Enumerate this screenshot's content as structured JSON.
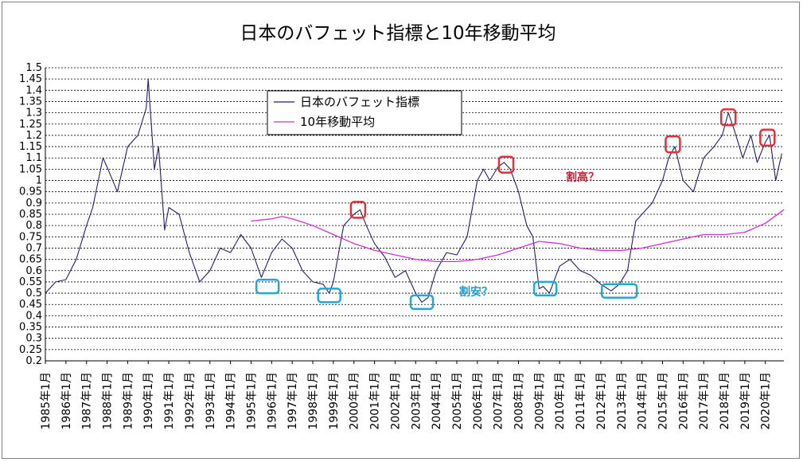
{
  "chart_data": {
    "type": "line",
    "title": "日本のバフェット指標と10年移動平均",
    "xlabel": "",
    "ylabel": "",
    "ylim": [
      0.2,
      1.5
    ],
    "y_ticks": [
      "1.5",
      "1.45",
      "1.4",
      "1.35",
      "1.3",
      "1.25",
      "1.2",
      "1.15",
      "1.1",
      "1.05",
      "1",
      "0.95",
      "0.9",
      "0.85",
      "0.8",
      "0.75",
      "0.7",
      "0.65",
      "0.6",
      "0.55",
      "0.5",
      "0.45",
      "0.4",
      "0.35",
      "0.3",
      "0.25",
      "0.2"
    ],
    "x_ticks": [
      "1985年1月",
      "1986年1月",
      "1987年1月",
      "1988年1月",
      "1989年1月",
      "1990年1月",
      "1991年1月",
      "1992年1月",
      "1993年1月",
      "1994年1月",
      "1995年1月",
      "1996年1月",
      "1997年1月",
      "1998年1月",
      "1999年1月",
      "2000年1月",
      "2001年1月",
      "2002年1月",
      "2003年1月",
      "2004年1月",
      "2005年1月",
      "2006年1月",
      "2007年1月",
      "2008年1月",
      "2009年1月",
      "2010年1月",
      "2011年1月",
      "2012年1月",
      "2013年1月",
      "2014年1月",
      "2015年1月",
      "2016年1月",
      "2017年1月",
      "2018年1月",
      "2019年1月",
      "2020年1月"
    ],
    "grid": true,
    "legend_position": "top-center",
    "series": [
      {
        "name": "日本のバフェット指標",
        "color": "#1f1f6e",
        "x": [
          1985.0,
          1985.5,
          1986.0,
          1986.5,
          1987.0,
          1987.3,
          1987.8,
          1988.0,
          1988.5,
          1989.0,
          1989.5,
          1989.9,
          1990.0,
          1990.3,
          1990.5,
          1990.8,
          1991.0,
          1991.5,
          1992.0,
          1992.5,
          1993.0,
          1993.5,
          1994.0,
          1994.5,
          1995.0,
          1995.5,
          1996.0,
          1996.5,
          1997.0,
          1997.5,
          1998.0,
          1998.5,
          1998.8,
          1999.0,
          1999.5,
          2000.0,
          2000.3,
          2000.6,
          2001.0,
          2001.5,
          2002.0,
          2002.5,
          2003.0,
          2003.3,
          2003.6,
          2004.0,
          2004.5,
          2005.0,
          2005.5,
          2006.0,
          2006.3,
          2006.6,
          2007.0,
          2007.3,
          2007.6,
          2008.0,
          2008.4,
          2008.7,
          2009.0,
          2009.2,
          2009.5,
          2010.0,
          2010.5,
          2011.0,
          2011.5,
          2012.0,
          2012.5,
          2012.9,
          2013.3,
          2013.7,
          2014.0,
          2014.5,
          2015.0,
          2015.3,
          2015.6,
          2016.0,
          2016.5,
          2017.0,
          2017.5,
          2017.9,
          2018.2,
          2018.5,
          2018.9,
          2019.3,
          2019.6,
          2020.0,
          2020.2,
          2020.5,
          2020.8
        ],
        "values": [
          0.5,
          0.55,
          0.56,
          0.65,
          0.8,
          0.88,
          1.1,
          1.06,
          0.95,
          1.15,
          1.2,
          1.32,
          1.45,
          1.05,
          1.15,
          0.78,
          0.88,
          0.85,
          0.68,
          0.55,
          0.6,
          0.7,
          0.68,
          0.76,
          0.7,
          0.57,
          0.68,
          0.74,
          0.7,
          0.6,
          0.55,
          0.54,
          0.5,
          0.55,
          0.8,
          0.85,
          0.87,
          0.8,
          0.72,
          0.66,
          0.57,
          0.6,
          0.5,
          0.46,
          0.48,
          0.6,
          0.68,
          0.67,
          0.75,
          1.0,
          1.05,
          1.0,
          1.06,
          1.08,
          1.05,
          0.95,
          0.8,
          0.75,
          0.52,
          0.53,
          0.5,
          0.62,
          0.65,
          0.6,
          0.58,
          0.54,
          0.51,
          0.54,
          0.6,
          0.82,
          0.85,
          0.9,
          1.0,
          1.1,
          1.15,
          1.0,
          0.95,
          1.1,
          1.15,
          1.2,
          1.3,
          1.22,
          1.1,
          1.2,
          1.08,
          1.17,
          1.2,
          1.0,
          1.12
        ]
      },
      {
        "name": "10年移動平均",
        "color": "#cc33cc",
        "x": [
          1995.0,
          1996.0,
          1996.5,
          1997.0,
          1998.0,
          1999.0,
          2000.0,
          2001.0,
          2002.0,
          2003.0,
          2004.0,
          2005.0,
          2006.0,
          2007.0,
          2008.0,
          2009.0,
          2010.0,
          2011.0,
          2012.0,
          2013.0,
          2014.0,
          2015.0,
          2016.0,
          2017.0,
          2018.0,
          2019.0,
          2020.0,
          2020.9
        ],
        "values": [
          0.82,
          0.83,
          0.84,
          0.83,
          0.8,
          0.76,
          0.72,
          0.69,
          0.67,
          0.65,
          0.64,
          0.64,
          0.65,
          0.67,
          0.7,
          0.73,
          0.72,
          0.7,
          0.69,
          0.69,
          0.7,
          0.72,
          0.74,
          0.76,
          0.76,
          0.77,
          0.81,
          0.87
        ]
      }
    ],
    "annotations": [
      {
        "text": "割高？",
        "color": "#c0243c"
      },
      {
        "text": "割安？",
        "color": "#1ea0c8"
      }
    ],
    "highlight_boxes": [
      {
        "kind": "high",
        "color": "#e0303a",
        "year": 2000.2,
        "level": 0.87
      },
      {
        "kind": "high",
        "color": "#e0303a",
        "year": 2007.4,
        "level": 1.07
      },
      {
        "kind": "high",
        "color": "#e0303a",
        "year": 2015.5,
        "level": 1.16
      },
      {
        "kind": "high",
        "color": "#e0303a",
        "year": 2018.2,
        "level": 1.28
      },
      {
        "kind": "high",
        "color": "#e0303a",
        "year": 2020.1,
        "level": 1.19
      },
      {
        "kind": "low",
        "color": "#20a8d8",
        "year": 1995.8,
        "level": 0.53
      },
      {
        "kind": "low",
        "color": "#20a8d8",
        "year": 1998.8,
        "level": 0.49
      },
      {
        "kind": "low",
        "color": "#20a8d8",
        "year": 2003.3,
        "level": 0.46
      },
      {
        "kind": "low",
        "color": "#20a8d8",
        "year": 2009.3,
        "level": 0.52
      },
      {
        "kind": "low",
        "color": "#20a8d8",
        "year": 2012.9,
        "level": 0.51
      }
    ]
  }
}
